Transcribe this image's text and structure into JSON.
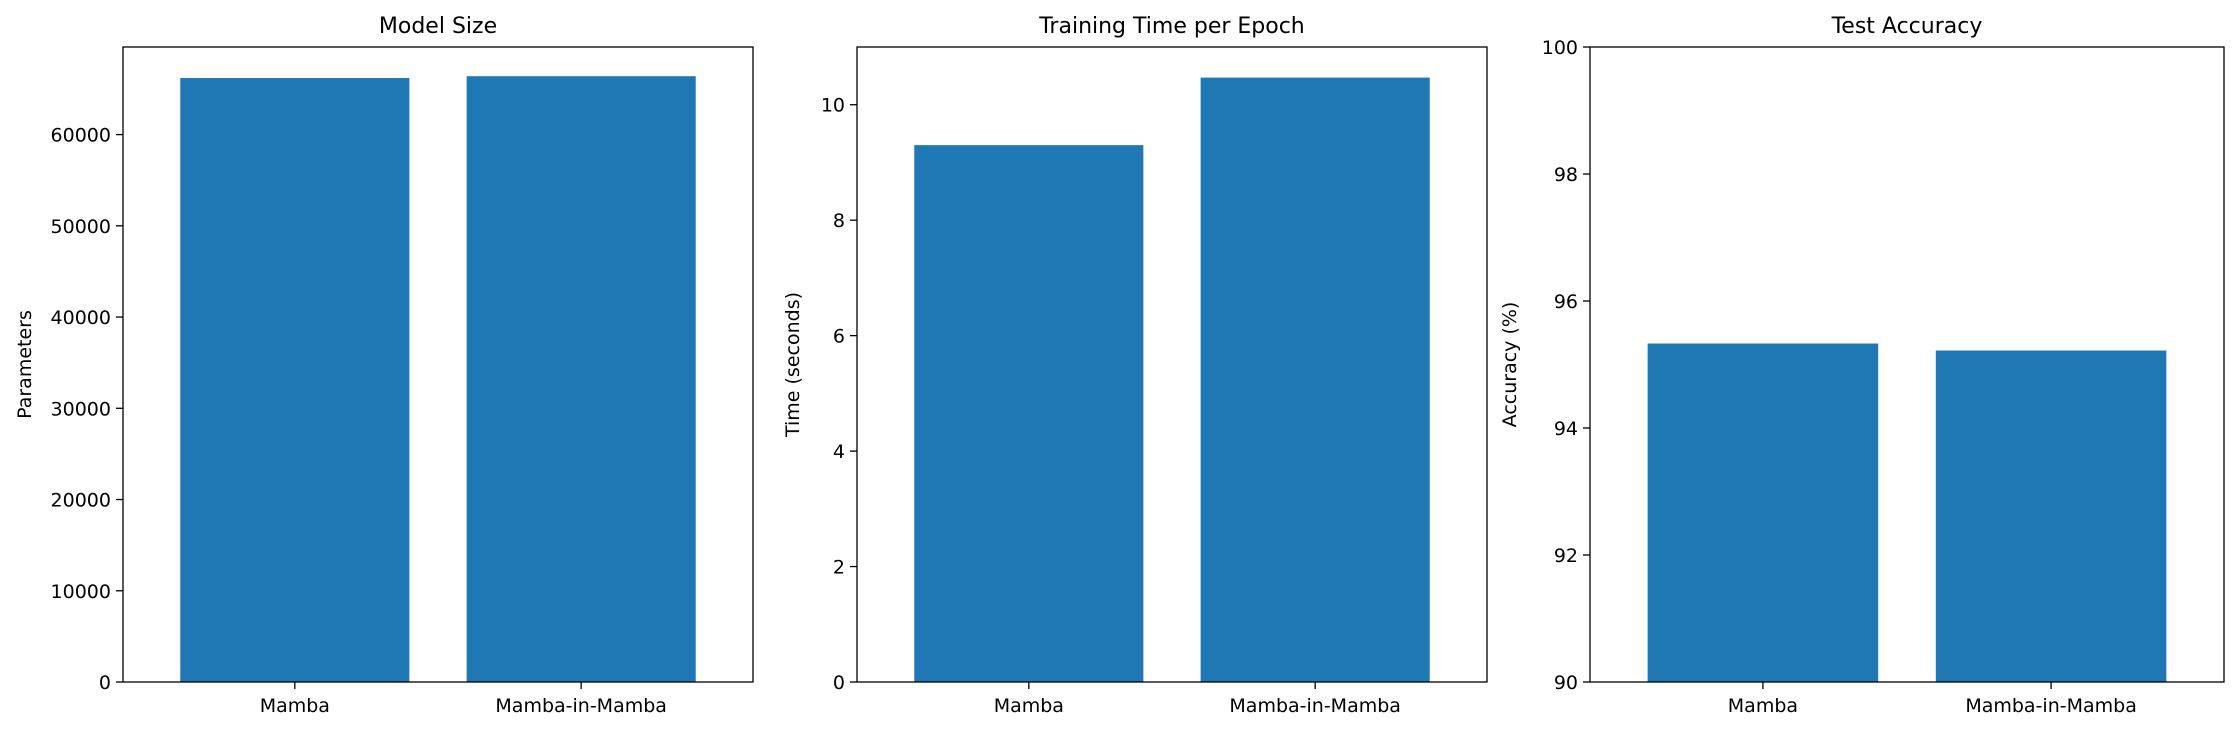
{
  "chart_data": [
    {
      "type": "bar",
      "title": "Model Size",
      "xlabel": "",
      "ylabel": "Parameters",
      "categories": [
        "Mamba",
        "Mamba-in-Mamba"
      ],
      "values": [
        66200,
        66400
      ],
      "ylim": [
        0,
        69600
      ],
      "yticks": [
        0,
        10000,
        20000,
        30000,
        40000,
        50000,
        60000
      ],
      "grid": false,
      "color": "#1f77b4"
    },
    {
      "type": "bar",
      "title": "Training Time per Epoch",
      "xlabel": "",
      "ylabel": "Time (seconds)",
      "categories": [
        "Mamba",
        "Mamba-in-Mamba"
      ],
      "values": [
        9.3,
        10.47
      ],
      "ylim": [
        0,
        11.0
      ],
      "yticks": [
        0,
        2,
        4,
        6,
        8,
        10
      ],
      "grid": false,
      "color": "#1f77b4"
    },
    {
      "type": "bar",
      "title": "Test Accuracy",
      "xlabel": "",
      "ylabel": "Accuracy (%)",
      "categories": [
        "Mamba",
        "Mamba-in-Mamba"
      ],
      "values": [
        95.33,
        95.22
      ],
      "ylim": [
        90,
        100
      ],
      "yticks": [
        90,
        92,
        94,
        96,
        98,
        100
      ],
      "grid": false,
      "color": "#1f77b4"
    }
  ]
}
